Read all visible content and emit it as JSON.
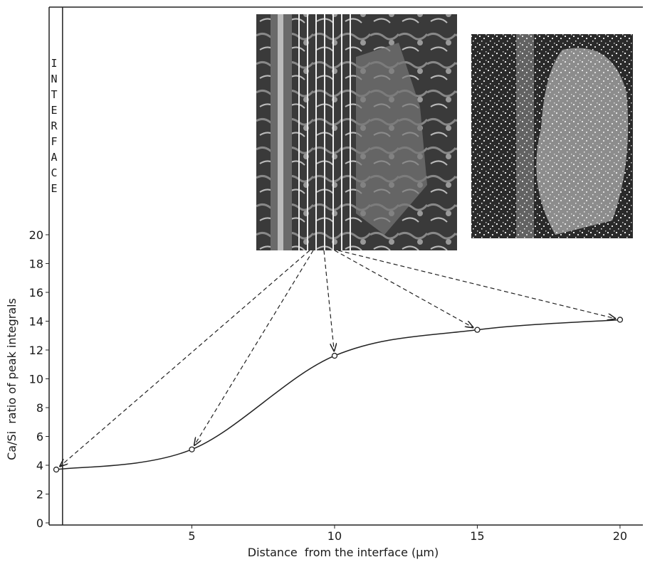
{
  "chart_data": {
    "type": "line",
    "x_label": "Distance  from the interface (μm)",
    "y_label": "Ca/Si  ratio of peak integrals",
    "annotation": "INTERFACE",
    "interface_x": 0.47,
    "x": [
      0.25,
      5,
      10,
      15,
      20
    ],
    "series": [
      {
        "values": [
          3.7,
          5.1,
          11.6,
          13.4,
          14.1
        ],
        "color": "#222222"
      }
    ],
    "xlim": [
      0,
      20.8
    ],
    "ylim": [
      0,
      35.8
    ],
    "xticks": [
      5,
      10,
      15,
      20
    ],
    "yticks": [
      0,
      2,
      4,
      6,
      8,
      10,
      12,
      14,
      16,
      18,
      20
    ]
  }
}
